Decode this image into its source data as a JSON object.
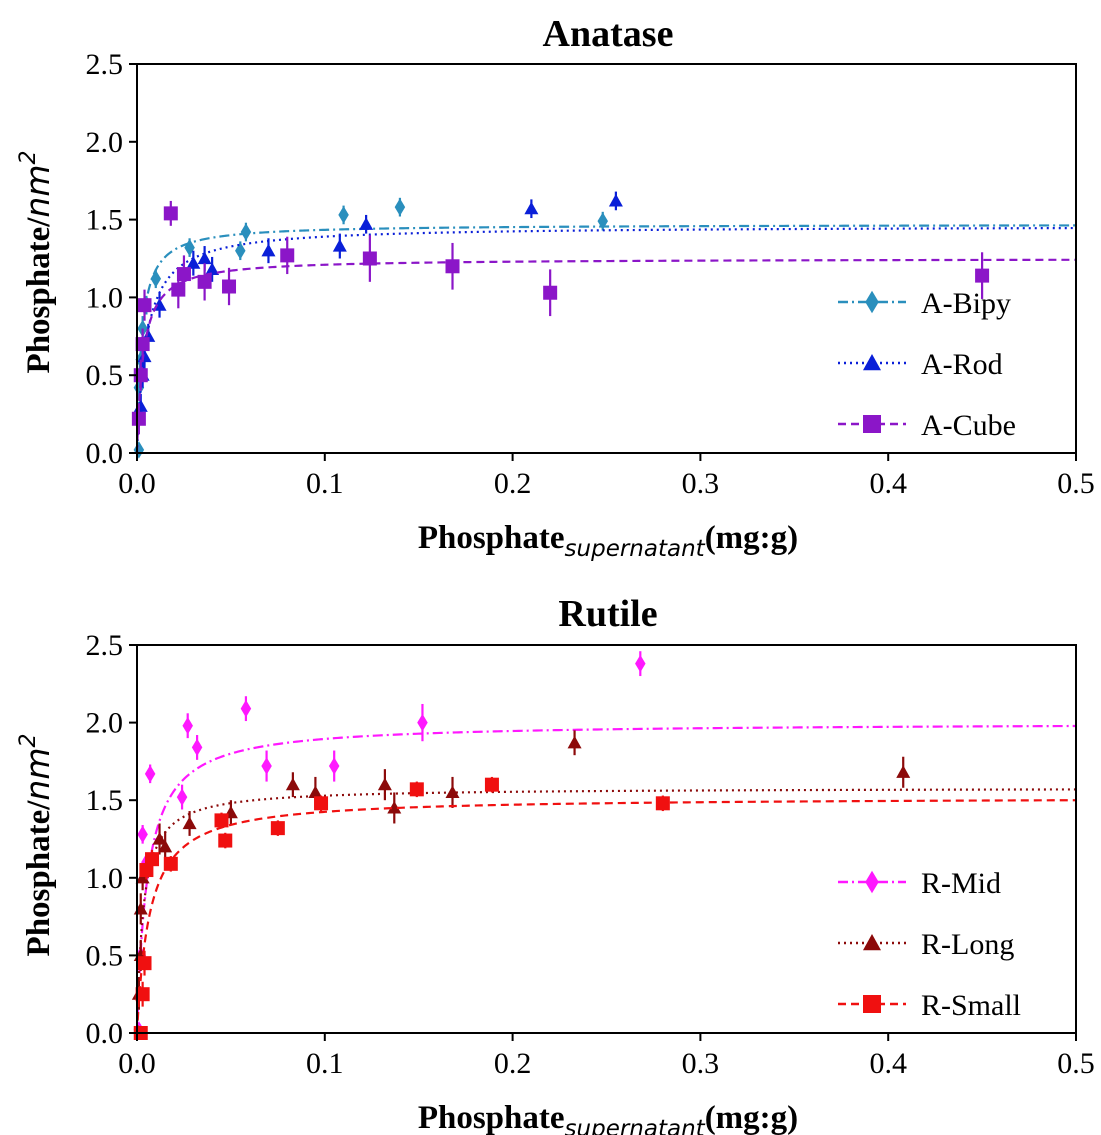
{
  "chart_data": [
    {
      "type": "scatter",
      "title": "Anatase",
      "ylabel_main": "Phosphate/",
      "ylabel_italic": "nm",
      "ylabel_sup": "2",
      "xlabel_main": "Phosphate",
      "xlabel_sub": "supernatant",
      "xlabel_tail": "(mg:g)",
      "xlim": [
        0,
        0.5
      ],
      "ylim": [
        0,
        2.5
      ],
      "xticks": [
        0.0,
        0.1,
        0.2,
        0.3,
        0.4,
        0.5
      ],
      "xtick_labels": [
        "0.0",
        "0.1",
        "0.2",
        "0.3",
        "0.4",
        "0.5"
      ],
      "yticks": [
        0.0,
        0.5,
        1.0,
        1.5,
        2.0,
        2.5
      ],
      "ytick_labels": [
        "0.0",
        "0.5",
        "1.0",
        "1.5",
        "2.0",
        "2.5"
      ],
      "legend_position": "lower-right",
      "series": [
        {
          "name": "A-Bipy",
          "color": "#2a8fbd",
          "marker": "diamond",
          "line": "dashdot",
          "fit": {
            "qmax": 1.47,
            "k": 400
          },
          "points": [
            {
              "x": 0.001,
              "y": 0.02,
              "err": 0.0
            },
            {
              "x": 0.001,
              "y": 0.25,
              "err": 0.08
            },
            {
              "x": 0.001,
              "y": 0.42,
              "err": 0.08
            },
            {
              "x": 0.002,
              "y": 0.6,
              "err": 0.08
            },
            {
              "x": 0.003,
              "y": 0.8,
              "err": 0.08
            },
            {
              "x": 0.005,
              "y": 0.95,
              "err": 0.06
            },
            {
              "x": 0.01,
              "y": 1.12,
              "err": 0.06
            },
            {
              "x": 0.028,
              "y": 1.32,
              "err": 0.06
            },
            {
              "x": 0.055,
              "y": 1.3,
              "err": 0.06
            },
            {
              "x": 0.058,
              "y": 1.42,
              "err": 0.06
            },
            {
              "x": 0.11,
              "y": 1.53,
              "err": 0.06
            },
            {
              "x": 0.14,
              "y": 1.58,
              "err": 0.06
            },
            {
              "x": 0.248,
              "y": 1.49,
              "err": 0.06
            }
          ]
        },
        {
          "name": "A-Rod",
          "color": "#0a1fd8",
          "marker": "triangle",
          "line": "dotted",
          "fit": {
            "qmax": 1.46,
            "k": 200
          },
          "points": [
            {
              "x": 0.002,
              "y": 0.3,
              "err": 0.08
            },
            {
              "x": 0.003,
              "y": 0.5,
              "err": 0.08
            },
            {
              "x": 0.004,
              "y": 0.62,
              "err": 0.08
            },
            {
              "x": 0.006,
              "y": 0.75,
              "err": 0.08
            },
            {
              "x": 0.012,
              "y": 0.95,
              "err": 0.08
            },
            {
              "x": 0.03,
              "y": 1.22,
              "err": 0.08
            },
            {
              "x": 0.036,
              "y": 1.25,
              "err": 0.08
            },
            {
              "x": 0.04,
              "y": 1.18,
              "err": 0.08
            },
            {
              "x": 0.07,
              "y": 1.3,
              "err": 0.08
            },
            {
              "x": 0.108,
              "y": 1.33,
              "err": 0.08
            },
            {
              "x": 0.122,
              "y": 1.47,
              "err": 0.06
            },
            {
              "x": 0.21,
              "y": 1.57,
              "err": 0.06
            },
            {
              "x": 0.255,
              "y": 1.62,
              "err": 0.06
            }
          ]
        },
        {
          "name": "A-Cube",
          "color": "#8b16c8",
          "marker": "square",
          "line": "dashed",
          "fit": {
            "qmax": 1.25,
            "k": 300
          },
          "points": [
            {
              "x": 0.001,
              "y": 0.22,
              "err": 0.1
            },
            {
              "x": 0.002,
              "y": 0.5,
              "err": 0.1
            },
            {
              "x": 0.003,
              "y": 0.7,
              "err": 0.1
            },
            {
              "x": 0.004,
              "y": 0.95,
              "err": 0.1
            },
            {
              "x": 0.018,
              "y": 1.54,
              "err": 0.08
            },
            {
              "x": 0.022,
              "y": 1.05,
              "err": 0.12
            },
            {
              "x": 0.025,
              "y": 1.15,
              "err": 0.12
            },
            {
              "x": 0.036,
              "y": 1.1,
              "err": 0.12
            },
            {
              "x": 0.049,
              "y": 1.07,
              "err": 0.12
            },
            {
              "x": 0.08,
              "y": 1.27,
              "err": 0.12
            },
            {
              "x": 0.124,
              "y": 1.25,
              "err": 0.15
            },
            {
              "x": 0.168,
              "y": 1.2,
              "err": 0.15
            },
            {
              "x": 0.22,
              "y": 1.03,
              "err": 0.15
            },
            {
              "x": 0.45,
              "y": 1.14,
              "err": 0.15
            }
          ]
        }
      ]
    },
    {
      "type": "scatter",
      "title": "Rutile",
      "ylabel_main": "Phosphate/",
      "ylabel_italic": "nm",
      "ylabel_sup": "2",
      "xlabel_main": "Phosphate",
      "xlabel_sub": "supernatant",
      "xlabel_tail": "(mg:g)",
      "xlim": [
        0,
        0.5
      ],
      "ylim": [
        0,
        2.5
      ],
      "xticks": [
        0.0,
        0.1,
        0.2,
        0.3,
        0.4,
        0.5
      ],
      "xtick_labels": [
        "0.0",
        "0.1",
        "0.2",
        "0.3",
        "0.4",
        "0.5"
      ],
      "yticks": [
        0.0,
        0.5,
        1.0,
        1.5,
        2.0,
        2.5
      ],
      "ytick_labels": [
        "0.0",
        "0.5",
        "1.0",
        "1.5",
        "2.0",
        "2.5"
      ],
      "legend_position": "lower-right",
      "series": [
        {
          "name": "R-Mid",
          "color": "#ff18ff",
          "marker": "diamond",
          "line": "dashdot",
          "fit": {
            "qmax": 2.0,
            "k": 180
          },
          "points": [
            {
              "x": 0.001,
              "y": 0.02,
              "err": 0.0
            },
            {
              "x": 0.002,
              "y": 0.5,
              "err": 0.08
            },
            {
              "x": 0.003,
              "y": 1.28,
              "err": 0.06
            },
            {
              "x": 0.005,
              "y": 1.1,
              "err": 0.06
            },
            {
              "x": 0.007,
              "y": 1.67,
              "err": 0.06
            },
            {
              "x": 0.024,
              "y": 1.52,
              "err": 0.08
            },
            {
              "x": 0.027,
              "y": 1.98,
              "err": 0.08
            },
            {
              "x": 0.032,
              "y": 1.84,
              "err": 0.08
            },
            {
              "x": 0.058,
              "y": 2.09,
              "err": 0.08
            },
            {
              "x": 0.069,
              "y": 1.72,
              "err": 0.1
            },
            {
              "x": 0.105,
              "y": 1.72,
              "err": 0.1
            },
            {
              "x": 0.152,
              "y": 2.0,
              "err": 0.12
            },
            {
              "x": 0.268,
              "y": 2.38,
              "err": 0.08
            }
          ]
        },
        {
          "name": "R-Long",
          "color": "#8c0a0a",
          "marker": "triangle",
          "line": "dotted",
          "fit": {
            "qmax": 1.58,
            "k": 300
          },
          "points": [
            {
              "x": 0.001,
              "y": 0.25,
              "err": 0.1
            },
            {
              "x": 0.002,
              "y": 0.5,
              "err": 0.1
            },
            {
              "x": 0.002,
              "y": 0.8,
              "err": 0.1
            },
            {
              "x": 0.003,
              "y": 1.0,
              "err": 0.08
            },
            {
              "x": 0.012,
              "y": 1.25,
              "err": 0.1
            },
            {
              "x": 0.015,
              "y": 1.2,
              "err": 0.1
            },
            {
              "x": 0.028,
              "y": 1.35,
              "err": 0.08
            },
            {
              "x": 0.05,
              "y": 1.42,
              "err": 0.08
            },
            {
              "x": 0.083,
              "y": 1.6,
              "err": 0.08
            },
            {
              "x": 0.095,
              "y": 1.55,
              "err": 0.1
            },
            {
              "x": 0.132,
              "y": 1.6,
              "err": 0.1
            },
            {
              "x": 0.137,
              "y": 1.45,
              "err": 0.1
            },
            {
              "x": 0.168,
              "y": 1.55,
              "err": 0.1
            },
            {
              "x": 0.233,
              "y": 1.87,
              "err": 0.08
            },
            {
              "x": 0.408,
              "y": 1.68,
              "err": 0.1
            }
          ]
        },
        {
          "name": "R-Small",
          "color": "#f01010",
          "marker": "square",
          "line": "dashed",
          "fit": {
            "qmax": 1.52,
            "k": 150
          },
          "points": [
            {
              "x": 0.002,
              "y": 0.0,
              "err": 0.0
            },
            {
              "x": 0.003,
              "y": 0.25,
              "err": 0.08
            },
            {
              "x": 0.004,
              "y": 0.45,
              "err": 0.08
            },
            {
              "x": 0.005,
              "y": 1.05,
              "err": 0.06
            },
            {
              "x": 0.008,
              "y": 1.12,
              "err": 0.06
            },
            {
              "x": 0.018,
              "y": 1.09,
              "err": 0.05
            },
            {
              "x": 0.045,
              "y": 1.37,
              "err": 0.05
            },
            {
              "x": 0.047,
              "y": 1.24,
              "err": 0.05
            },
            {
              "x": 0.075,
              "y": 1.32,
              "err": 0.05
            },
            {
              "x": 0.098,
              "y": 1.48,
              "err": 0.05
            },
            {
              "x": 0.149,
              "y": 1.57,
              "err": 0.05
            },
            {
              "x": 0.189,
              "y": 1.6,
              "err": 0.05
            },
            {
              "x": 0.28,
              "y": 1.48,
              "err": 0.05
            }
          ]
        }
      ]
    }
  ]
}
